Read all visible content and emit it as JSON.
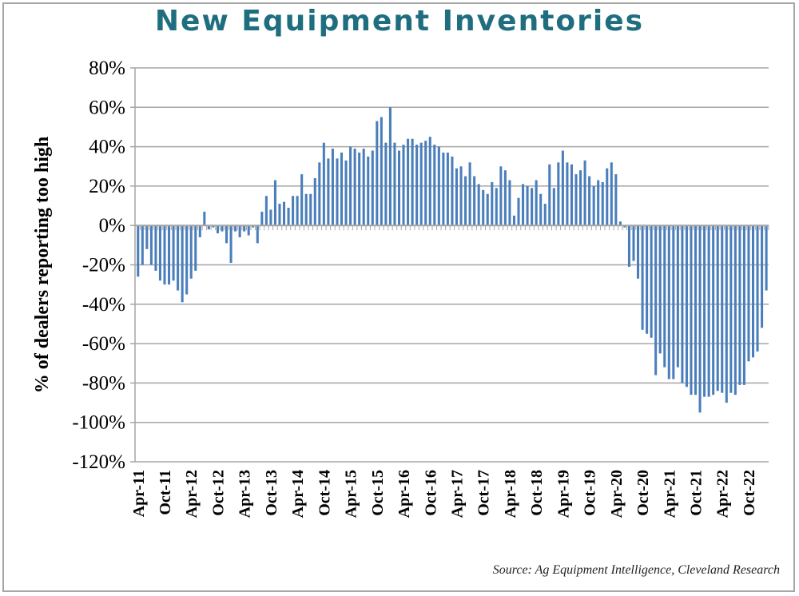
{
  "chart_data": {
    "type": "bar",
    "title": "New Equipment Inventories",
    "xlabel": "",
    "ylabel": "% of dealers reporting too high",
    "ylim": [
      -120,
      80
    ],
    "yticks": [
      80,
      60,
      40,
      20,
      0,
      -20,
      -40,
      -60,
      -80,
      -100,
      -120
    ],
    "ytick_labels": [
      "80%",
      "60%",
      "40%",
      "20%",
      "0%",
      "-20%",
      "-40%",
      "-60%",
      "-80%",
      "-100%",
      "-120%"
    ],
    "grid": true,
    "legend": "none",
    "bar_color": "#4a7ebb",
    "start_month": "Apr-11",
    "end_month": "Feb-23",
    "xtick_labels": [
      "Apr-11",
      "Oct-11",
      "Apr-12",
      "Oct-12",
      "Apr-13",
      "Oct-13",
      "Apr-14",
      "Oct-14",
      "Apr-15",
      "Oct-15",
      "Apr-16",
      "Oct-16",
      "Apr-17",
      "Oct-17",
      "Apr-18",
      "Oct-18",
      "Apr-19",
      "Oct-19",
      "Apr-20",
      "Oct-20",
      "Apr-21",
      "Oct-21",
      "Apr-22",
      "Oct-22"
    ],
    "values": [
      -26,
      -20,
      -12,
      -20,
      -23,
      -28,
      -30,
      -30,
      -28,
      -33,
      -39,
      -35,
      -27,
      -23,
      -6,
      7,
      -2,
      -1,
      -4,
      -3,
      -9,
      -19,
      -3,
      -6,
      -3,
      -5,
      -1,
      -9,
      7,
      15,
      8,
      23,
      11,
      12,
      9,
      15,
      15,
      26,
      16,
      16,
      24,
      32,
      42,
      34,
      39,
      34,
      37,
      33,
      40,
      39,
      37,
      39,
      35,
      38,
      53,
      55,
      42,
      60,
      42,
      38,
      41,
      44,
      44,
      41,
      42,
      43,
      45,
      41,
      40,
      37,
      37,
      35,
      29,
      30,
      25,
      32,
      25,
      21,
      18,
      16,
      22,
      19,
      30,
      28,
      23,
      5,
      14,
      21,
      20,
      19,
      23,
      16,
      11,
      31,
      19,
      32,
      38,
      32,
      31,
      26,
      28,
      33,
      25,
      20,
      23,
      22,
      29,
      32,
      26,
      2,
      -1,
      -21,
      -18,
      -27,
      -53,
      -55,
      -57,
      -76,
      -65,
      -72,
      -78,
      -78,
      -72,
      -80,
      -82,
      -86,
      -86,
      -95,
      -87,
      -87,
      -86,
      -84,
      -85,
      -90,
      -85,
      -86,
      -81,
      -81,
      -69,
      -67,
      -64,
      -52,
      -33
    ]
  },
  "source": "Source: Ag Equipment Intelligence, Cleveland Research",
  "colors": {
    "title": "#1f6e7f",
    "bars": "#4a7ebb",
    "grid": "#a6a6a6"
  }
}
